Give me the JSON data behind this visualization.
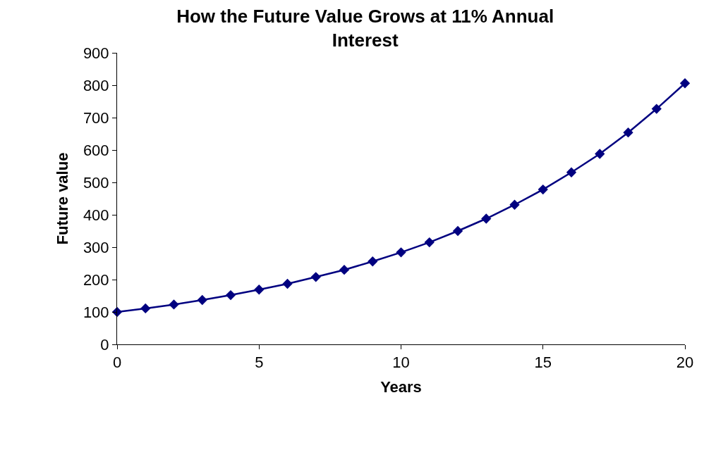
{
  "chart_data": {
    "type": "line",
    "title": "How the Future Value Grows at 11% Annual Interest",
    "xlabel": "Years",
    "ylabel": "Future value",
    "x": [
      0,
      1,
      2,
      3,
      4,
      5,
      6,
      7,
      8,
      9,
      10,
      11,
      12,
      13,
      14,
      15,
      16,
      17,
      18,
      19,
      20
    ],
    "series": [
      {
        "color": "#000080",
        "values": [
          100,
          111,
          123,
          137,
          152,
          169,
          187,
          208,
          230,
          256,
          284,
          315,
          350,
          388,
          431,
          478,
          531,
          588,
          654,
          727,
          806
        ]
      }
    ],
    "xlim": [
      0,
      20
    ],
    "xticks": [
      0,
      5,
      10,
      15,
      20
    ],
    "ylim": [
      0,
      900
    ],
    "yticks": [
      0,
      100,
      200,
      300,
      400,
      500,
      600,
      700,
      800,
      900
    ],
    "legend": false,
    "marker": "diamond",
    "line_style": "solid"
  }
}
